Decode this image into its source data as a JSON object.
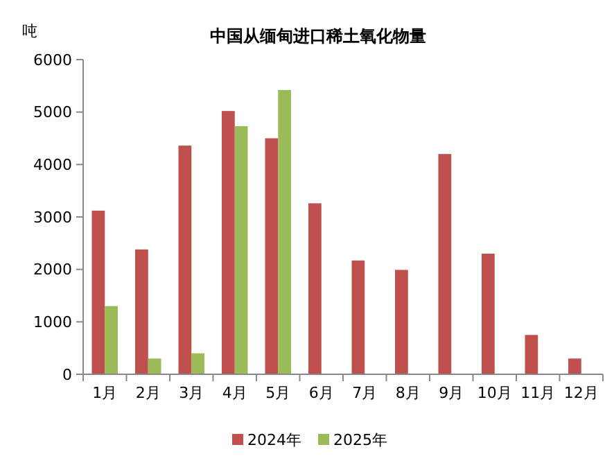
{
  "chart_data": {
    "type": "bar",
    "title": "中国从缅甸进口稀土氧化物量",
    "ylabel": "吨",
    "categories": [
      "1月",
      "2月",
      "3月",
      "4月",
      "5月",
      "6月",
      "7月",
      "8月",
      "9月",
      "10月",
      "11月",
      "12月"
    ],
    "series": [
      {
        "name": "2024年",
        "color": "#c0504d",
        "values": [
          3120,
          2380,
          4360,
          5020,
          4500,
          3260,
          2170,
          1990,
          4200,
          2300,
          750,
          300
        ]
      },
      {
        "name": "2025年",
        "color": "#9bbb59",
        "values": [
          1300,
          300,
          400,
          4730,
          5420,
          null,
          null,
          null,
          null,
          null,
          null,
          null
        ]
      }
    ],
    "ylim": [
      0,
      6000
    ],
    "yticks": [
      0,
      1000,
      2000,
      3000,
      4000,
      5000,
      6000
    ],
    "grid": false,
    "legend": "bottom"
  }
}
